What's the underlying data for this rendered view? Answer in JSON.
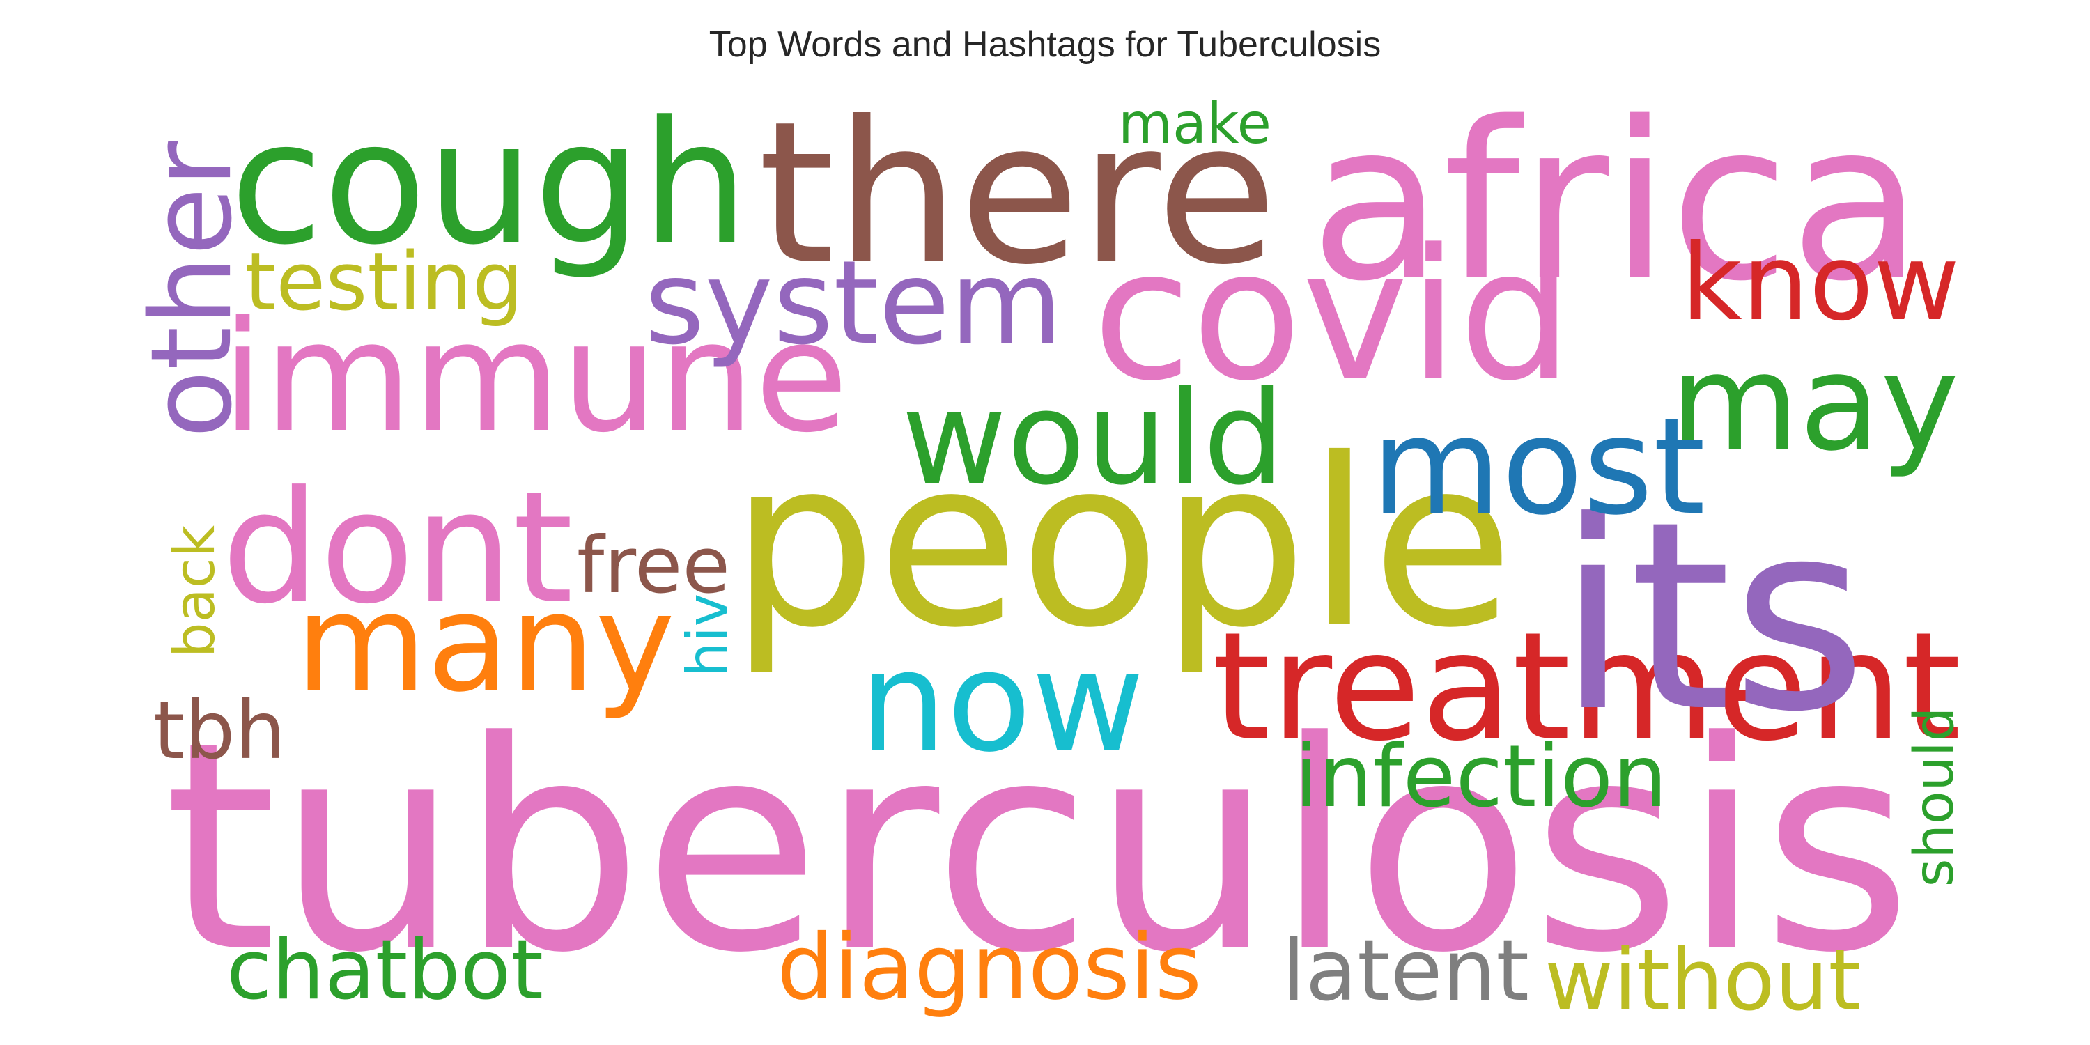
{
  "title": "Top Words and Hashtags for Tuberculosis",
  "colors": {
    "pink": "#e377c2",
    "green": "#2ca02c",
    "brown": "#8c564b",
    "purple": "#9467bd",
    "olive": "#bcbd22",
    "red": "#d62728",
    "blue": "#1f77b4",
    "orange": "#ff7f0e",
    "cyan": "#17becf",
    "gray": "#7f7f7f"
  },
  "words": [
    {
      "text": "tuberculosis",
      "color": "#e377c2",
      "orientation": "horizontal"
    },
    {
      "text": "people",
      "color": "#bcbd22",
      "orientation": "horizontal"
    },
    {
      "text": "immune",
      "color": "#e377c2",
      "orientation": "horizontal"
    },
    {
      "text": "cough",
      "color": "#2ca02c",
      "orientation": "horizontal"
    },
    {
      "text": "there",
      "color": "#8c564b",
      "orientation": "horizontal"
    },
    {
      "text": "africa",
      "color": "#e377c2",
      "orientation": "horizontal"
    },
    {
      "text": "covid",
      "color": "#e377c2",
      "orientation": "horizontal"
    },
    {
      "text": "treatment",
      "color": "#d62728",
      "orientation": "horizontal"
    },
    {
      "text": "its",
      "color": "#9467bd",
      "orientation": "horizontal"
    },
    {
      "text": "dont",
      "color": "#e377c2",
      "orientation": "horizontal"
    },
    {
      "text": "many",
      "color": "#ff7f0e",
      "orientation": "horizontal"
    },
    {
      "text": "may",
      "color": "#2ca02c",
      "orientation": "horizontal"
    },
    {
      "text": "now",
      "color": "#17becf",
      "orientation": "horizontal"
    },
    {
      "text": "would",
      "color": "#2ca02c",
      "orientation": "horizontal"
    },
    {
      "text": "system",
      "color": "#9467bd",
      "orientation": "horizontal"
    },
    {
      "text": "know",
      "color": "#d62728",
      "orientation": "horizontal"
    },
    {
      "text": "other",
      "color": "#9467bd",
      "orientation": "vertical"
    },
    {
      "text": "most",
      "color": "#1f77b4",
      "orientation": "horizontal"
    },
    {
      "text": "diagnosis",
      "color": "#ff7f0e",
      "orientation": "horizontal"
    },
    {
      "text": "chatbot",
      "color": "#2ca02c",
      "orientation": "horizontal"
    },
    {
      "text": "without",
      "color": "#bcbd22",
      "orientation": "horizontal"
    },
    {
      "text": "infection",
      "color": "#2ca02c",
      "orientation": "horizontal"
    },
    {
      "text": "latent",
      "color": "#7f7f7f",
      "orientation": "horizontal"
    },
    {
      "text": "testing",
      "color": "#bcbd22",
      "orientation": "horizontal"
    },
    {
      "text": "make",
      "color": "#2ca02c",
      "orientation": "horizontal"
    },
    {
      "text": "free",
      "color": "#8c564b",
      "orientation": "horizontal"
    },
    {
      "text": "back",
      "color": "#bcbd22",
      "orientation": "vertical"
    },
    {
      "text": "tbh",
      "color": "#8c564b",
      "orientation": "horizontal"
    },
    {
      "text": "hiv",
      "color": "#17becf",
      "orientation": "vertical"
    },
    {
      "text": "should",
      "color": "#2ca02c",
      "orientation": "vertical"
    }
  ]
}
